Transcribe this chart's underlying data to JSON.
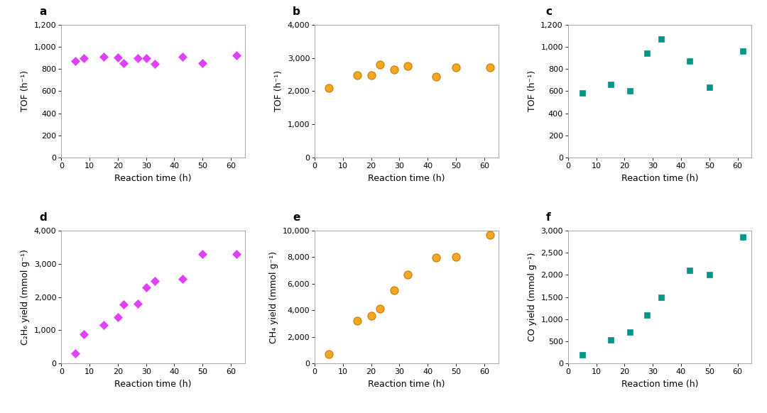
{
  "panels": [
    {
      "label": "a",
      "x": [
        5,
        8,
        15,
        20,
        22,
        27,
        30,
        33,
        43,
        50,
        62
      ],
      "y": [
        875,
        895,
        910,
        905,
        855,
        900,
        900,
        845,
        910,
        855,
        925
      ],
      "color": "#e040fb",
      "marker": "D",
      "markersize": 6,
      "ylabel": "TOF (h⁻¹)",
      "xlabel": "Reaction time (h)",
      "ylim": [
        0,
        1200
      ],
      "yticks": [
        0,
        200,
        400,
        600,
        800,
        1000,
        1200
      ],
      "xlim": [
        0,
        65
      ],
      "xticks": [
        0,
        10,
        20,
        30,
        40,
        50,
        60
      ]
    },
    {
      "label": "b",
      "x": [
        5,
        15,
        20,
        23,
        28,
        33,
        43,
        50,
        62
      ],
      "y": [
        2100,
        2480,
        2490,
        2800,
        2650,
        2750,
        2430,
        2720,
        2720
      ],
      "color": "#f5a623",
      "marker": "o",
      "markersize": 8,
      "ylabel": "TOF (h⁻¹)",
      "xlabel": "Reaction time (h)",
      "ylim": [
        0,
        4000
      ],
      "yticks": [
        0,
        1000,
        2000,
        3000,
        4000
      ],
      "xlim": [
        0,
        65
      ],
      "xticks": [
        0,
        10,
        20,
        30,
        40,
        50,
        60
      ]
    },
    {
      "label": "c",
      "x": [
        5,
        15,
        22,
        28,
        33,
        43,
        50,
        62
      ],
      "y": [
        585,
        660,
        600,
        940,
        1070,
        875,
        635,
        960
      ],
      "color": "#009688",
      "marker": "s",
      "markersize": 6,
      "ylabel": "TOF (h⁻¹)",
      "xlabel": "Reaction time (h)",
      "ylim": [
        0,
        1200
      ],
      "yticks": [
        0,
        200,
        400,
        600,
        800,
        1000,
        1200
      ],
      "xlim": [
        0,
        65
      ],
      "xticks": [
        0,
        10,
        20,
        30,
        40,
        50,
        60
      ]
    },
    {
      "label": "d",
      "x": [
        5,
        8,
        15,
        20,
        22,
        27,
        30,
        33,
        43,
        50,
        62
      ],
      "y": [
        300,
        870,
        1150,
        1400,
        1780,
        1800,
        2300,
        2480,
        2550,
        3300,
        3300
      ],
      "color": "#e040fb",
      "marker": "D",
      "markersize": 6,
      "ylabel": "C₂H₆ yield (mmol g⁻¹)",
      "xlabel": "Reaction time (h)",
      "ylim": [
        0,
        4000
      ],
      "yticks": [
        0,
        1000,
        2000,
        3000,
        4000
      ],
      "xlim": [
        0,
        65
      ],
      "xticks": [
        0,
        10,
        20,
        30,
        40,
        50,
        60
      ]
    },
    {
      "label": "e",
      "x": [
        5,
        15,
        20,
        23,
        28,
        33,
        43,
        50,
        62
      ],
      "y": [
        700,
        3200,
        3600,
        4100,
        5500,
        6700,
        7950,
        8000,
        9700
      ],
      "color": "#f5a623",
      "marker": "o",
      "markersize": 8,
      "ylabel": "CH₄ yield (mmol g⁻¹)",
      "xlabel": "Reaction time (h)",
      "ylim": [
        0,
        10000
      ],
      "yticks": [
        0,
        2000,
        4000,
        6000,
        8000,
        10000
      ],
      "xlim": [
        0,
        65
      ],
      "xticks": [
        0,
        10,
        20,
        30,
        40,
        50,
        60
      ]
    },
    {
      "label": "f",
      "x": [
        5,
        15,
        22,
        28,
        33,
        43,
        50,
        62
      ],
      "y": [
        200,
        530,
        700,
        1100,
        1500,
        2100,
        2000,
        2850
      ],
      "color": "#009688",
      "marker": "s",
      "markersize": 6,
      "ylabel": "CO yield (mmol g⁻¹)",
      "xlabel": "Reaction time (h)",
      "ylim": [
        0,
        3000
      ],
      "yticks": [
        0,
        500,
        1000,
        1500,
        2000,
        2500,
        3000
      ],
      "xlim": [
        0,
        65
      ],
      "xticks": [
        0,
        10,
        20,
        30,
        40,
        50,
        60
      ]
    }
  ],
  "background_color": "#ffffff",
  "label_fontsize": 11,
  "axis_label_fontsize": 9,
  "tick_fontsize": 8
}
